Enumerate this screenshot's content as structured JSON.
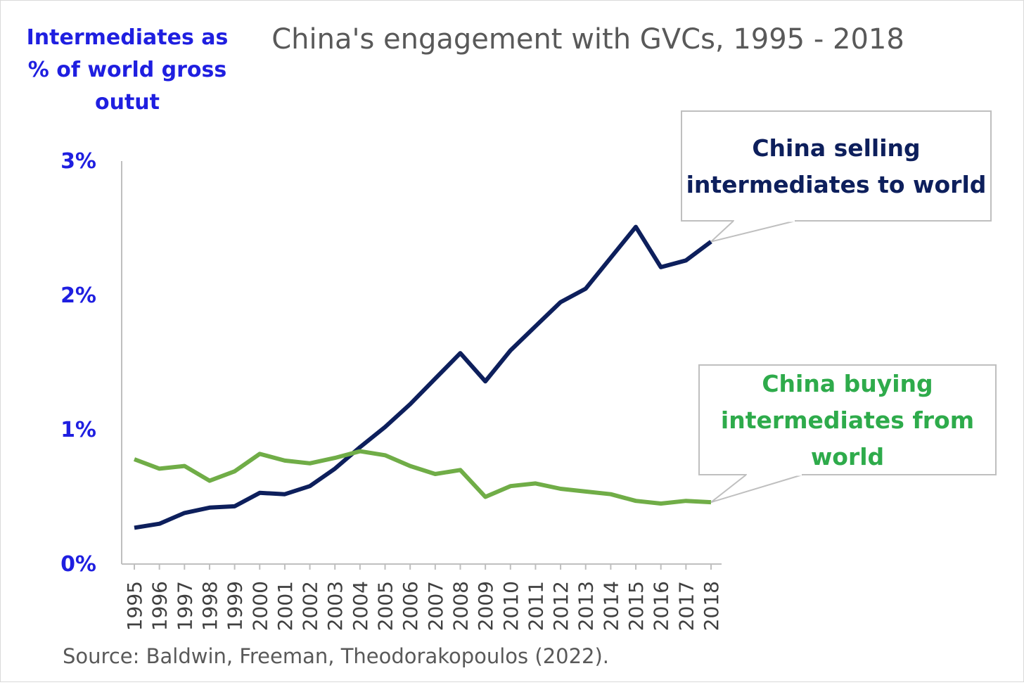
{
  "chart_data": {
    "type": "line",
    "title": "China's engagement with GVCs, 1995 - 2018",
    "ylabel": "Intermediates as % of world gross outut",
    "ylim": [
      0,
      3
    ],
    "ytick_labels": [
      "0%",
      "1%",
      "2%",
      "3%"
    ],
    "yticks": [
      0,
      1,
      2,
      3
    ],
    "grid": false,
    "x": [
      "1995",
      "1996",
      "1997",
      "1998",
      "1999",
      "2000",
      "2001",
      "2002",
      "2003",
      "2004",
      "2005",
      "2006",
      "2007",
      "2008",
      "2009",
      "2010",
      "2011",
      "2012",
      "2013",
      "2014",
      "2015",
      "2016",
      "2017",
      "2018"
    ],
    "series": [
      {
        "name": "China selling intermediates to world",
        "color": "#0d1f5c",
        "values": [
          0.27,
          0.3,
          0.38,
          0.42,
          0.43,
          0.53,
          0.52,
          0.58,
          0.71,
          0.87,
          1.02,
          1.19,
          1.38,
          1.57,
          1.36,
          1.59,
          1.77,
          1.95,
          2.05,
          2.28,
          2.51,
          2.21,
          2.26,
          2.4
        ]
      },
      {
        "name": "China buying intermediates from world",
        "color": "#70ad47",
        "values": [
          0.78,
          0.71,
          0.73,
          0.62,
          0.69,
          0.82,
          0.77,
          0.75,
          0.79,
          0.84,
          0.81,
          0.73,
          0.67,
          0.7,
          0.5,
          0.58,
          0.6,
          0.56,
          0.54,
          0.52,
          0.47,
          0.45,
          0.47,
          0.46
        ]
      }
    ],
    "annotations": [
      {
        "lines": [
          "China selling",
          "intermediates to world"
        ],
        "color": "#0d1f5c",
        "series": 0
      },
      {
        "lines": [
          "China buying",
          "intermediates from",
          "world"
        ],
        "color": "#2eab4b",
        "series": 1
      }
    ],
    "source": "Source: Baldwin, Freeman, Theodorakopoulos (2022).",
    "axis_label_color": "#1f1fe0",
    "title_color": "#595959"
  }
}
